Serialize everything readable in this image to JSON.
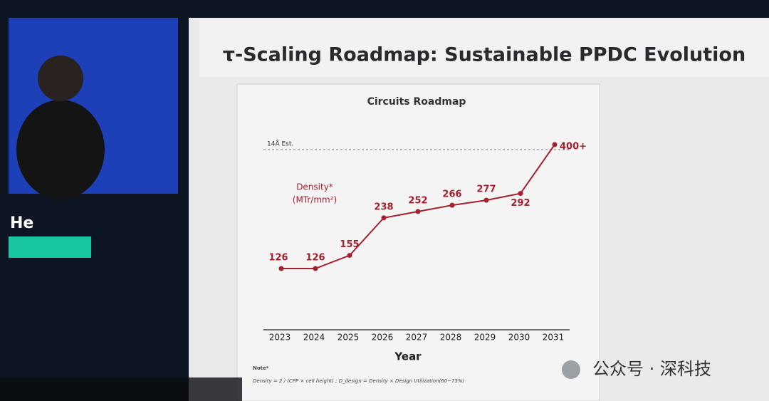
{
  "slide_title": "τ-Scaling Roadmap: Sustainable PPDC Evolution",
  "speaker": "He",
  "watermark": "公众号 · 深科技",
  "note": {
    "title": "Note*",
    "formula": "Density = 2 / (CPP × cell height) ; D_design = Density × Design Utilization(60~75%)"
  },
  "chart_data": {
    "type": "line",
    "title": "Circuits Roadmap",
    "xlabel": "Year",
    "ylabel": [
      "Density*",
      "(MTr/mm²)"
    ],
    "annotation": "14Å Est.",
    "categories": [
      "2023",
      "2024",
      "2025",
      "2026",
      "2027",
      "2028",
      "2029",
      "2030",
      "2031"
    ],
    "values": [
      126,
      126,
      155,
      238,
      252,
      266,
      277,
      292,
      400
    ],
    "value_labels": [
      "126",
      "126",
      "155",
      "238",
      "252",
      "266",
      "277",
      "292",
      "400+"
    ],
    "color": "#a3202e"
  }
}
